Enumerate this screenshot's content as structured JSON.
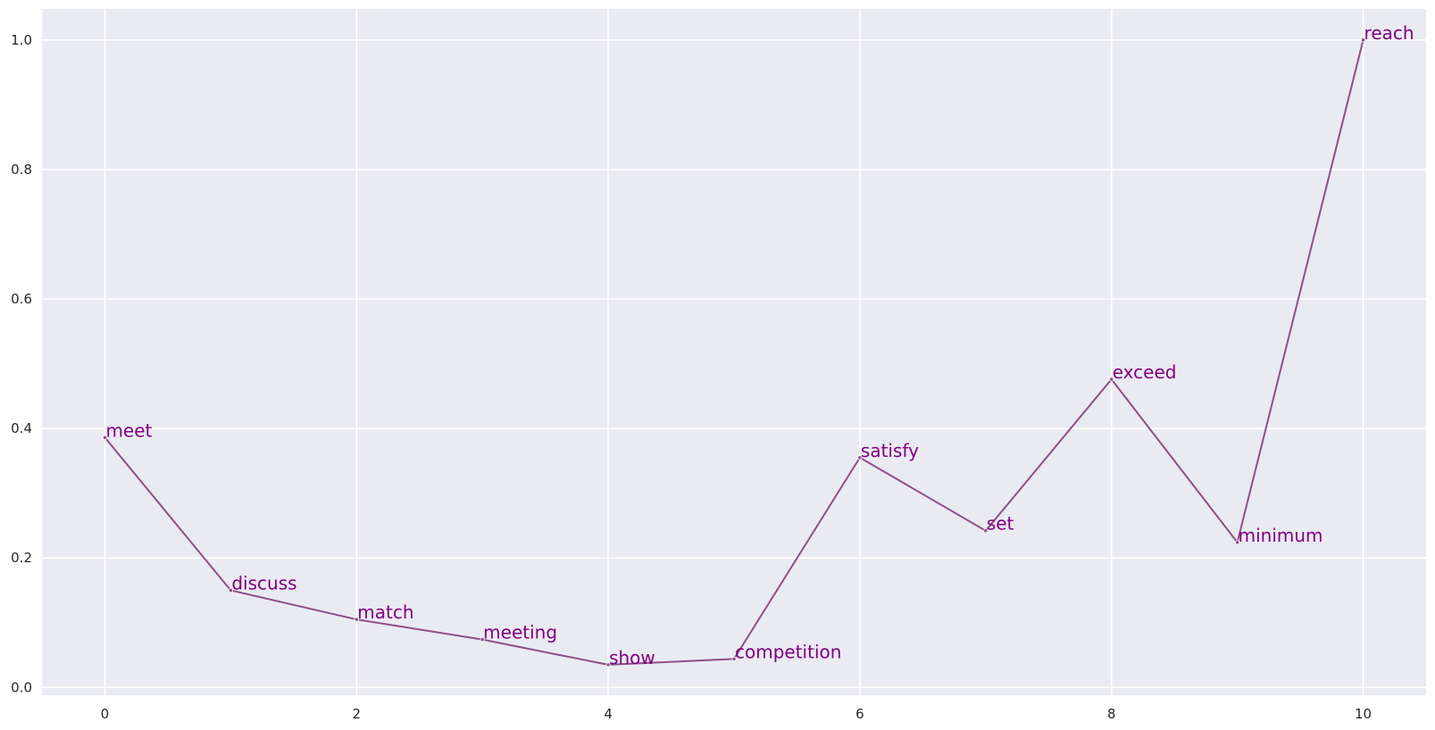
{
  "chart_data": {
    "type": "line",
    "x": [
      0,
      1,
      2,
      3,
      4,
      5,
      6,
      7,
      8,
      9,
      10
    ],
    "values": [
      0.386,
      0.15,
      0.105,
      0.074,
      0.035,
      0.044,
      0.355,
      0.242,
      0.476,
      0.224,
      1.0
    ],
    "point_labels": [
      "meet",
      "discuss",
      "match",
      "meeting",
      "show",
      "competition",
      "satisfy",
      "set",
      "exceed",
      "minimum",
      "reach"
    ],
    "xlim": [
      -0.5,
      10.5
    ],
    "ylim": [
      -0.012,
      1.048
    ],
    "xticks": [
      0,
      2,
      4,
      6,
      8,
      10
    ],
    "yticks": [
      0.0,
      0.2,
      0.4,
      0.6,
      0.8,
      1.0
    ],
    "xtick_labels": [
      "0",
      "2",
      "4",
      "6",
      "8",
      "10"
    ],
    "ytick_labels": [
      "0.0",
      "0.2",
      "0.4",
      "0.6",
      "0.8",
      "1.0"
    ],
    "grid": true,
    "colors": {
      "background": "#eaeaf2",
      "grid": "#ffffff",
      "line": "#8e4f85",
      "label": "#800080"
    }
  }
}
